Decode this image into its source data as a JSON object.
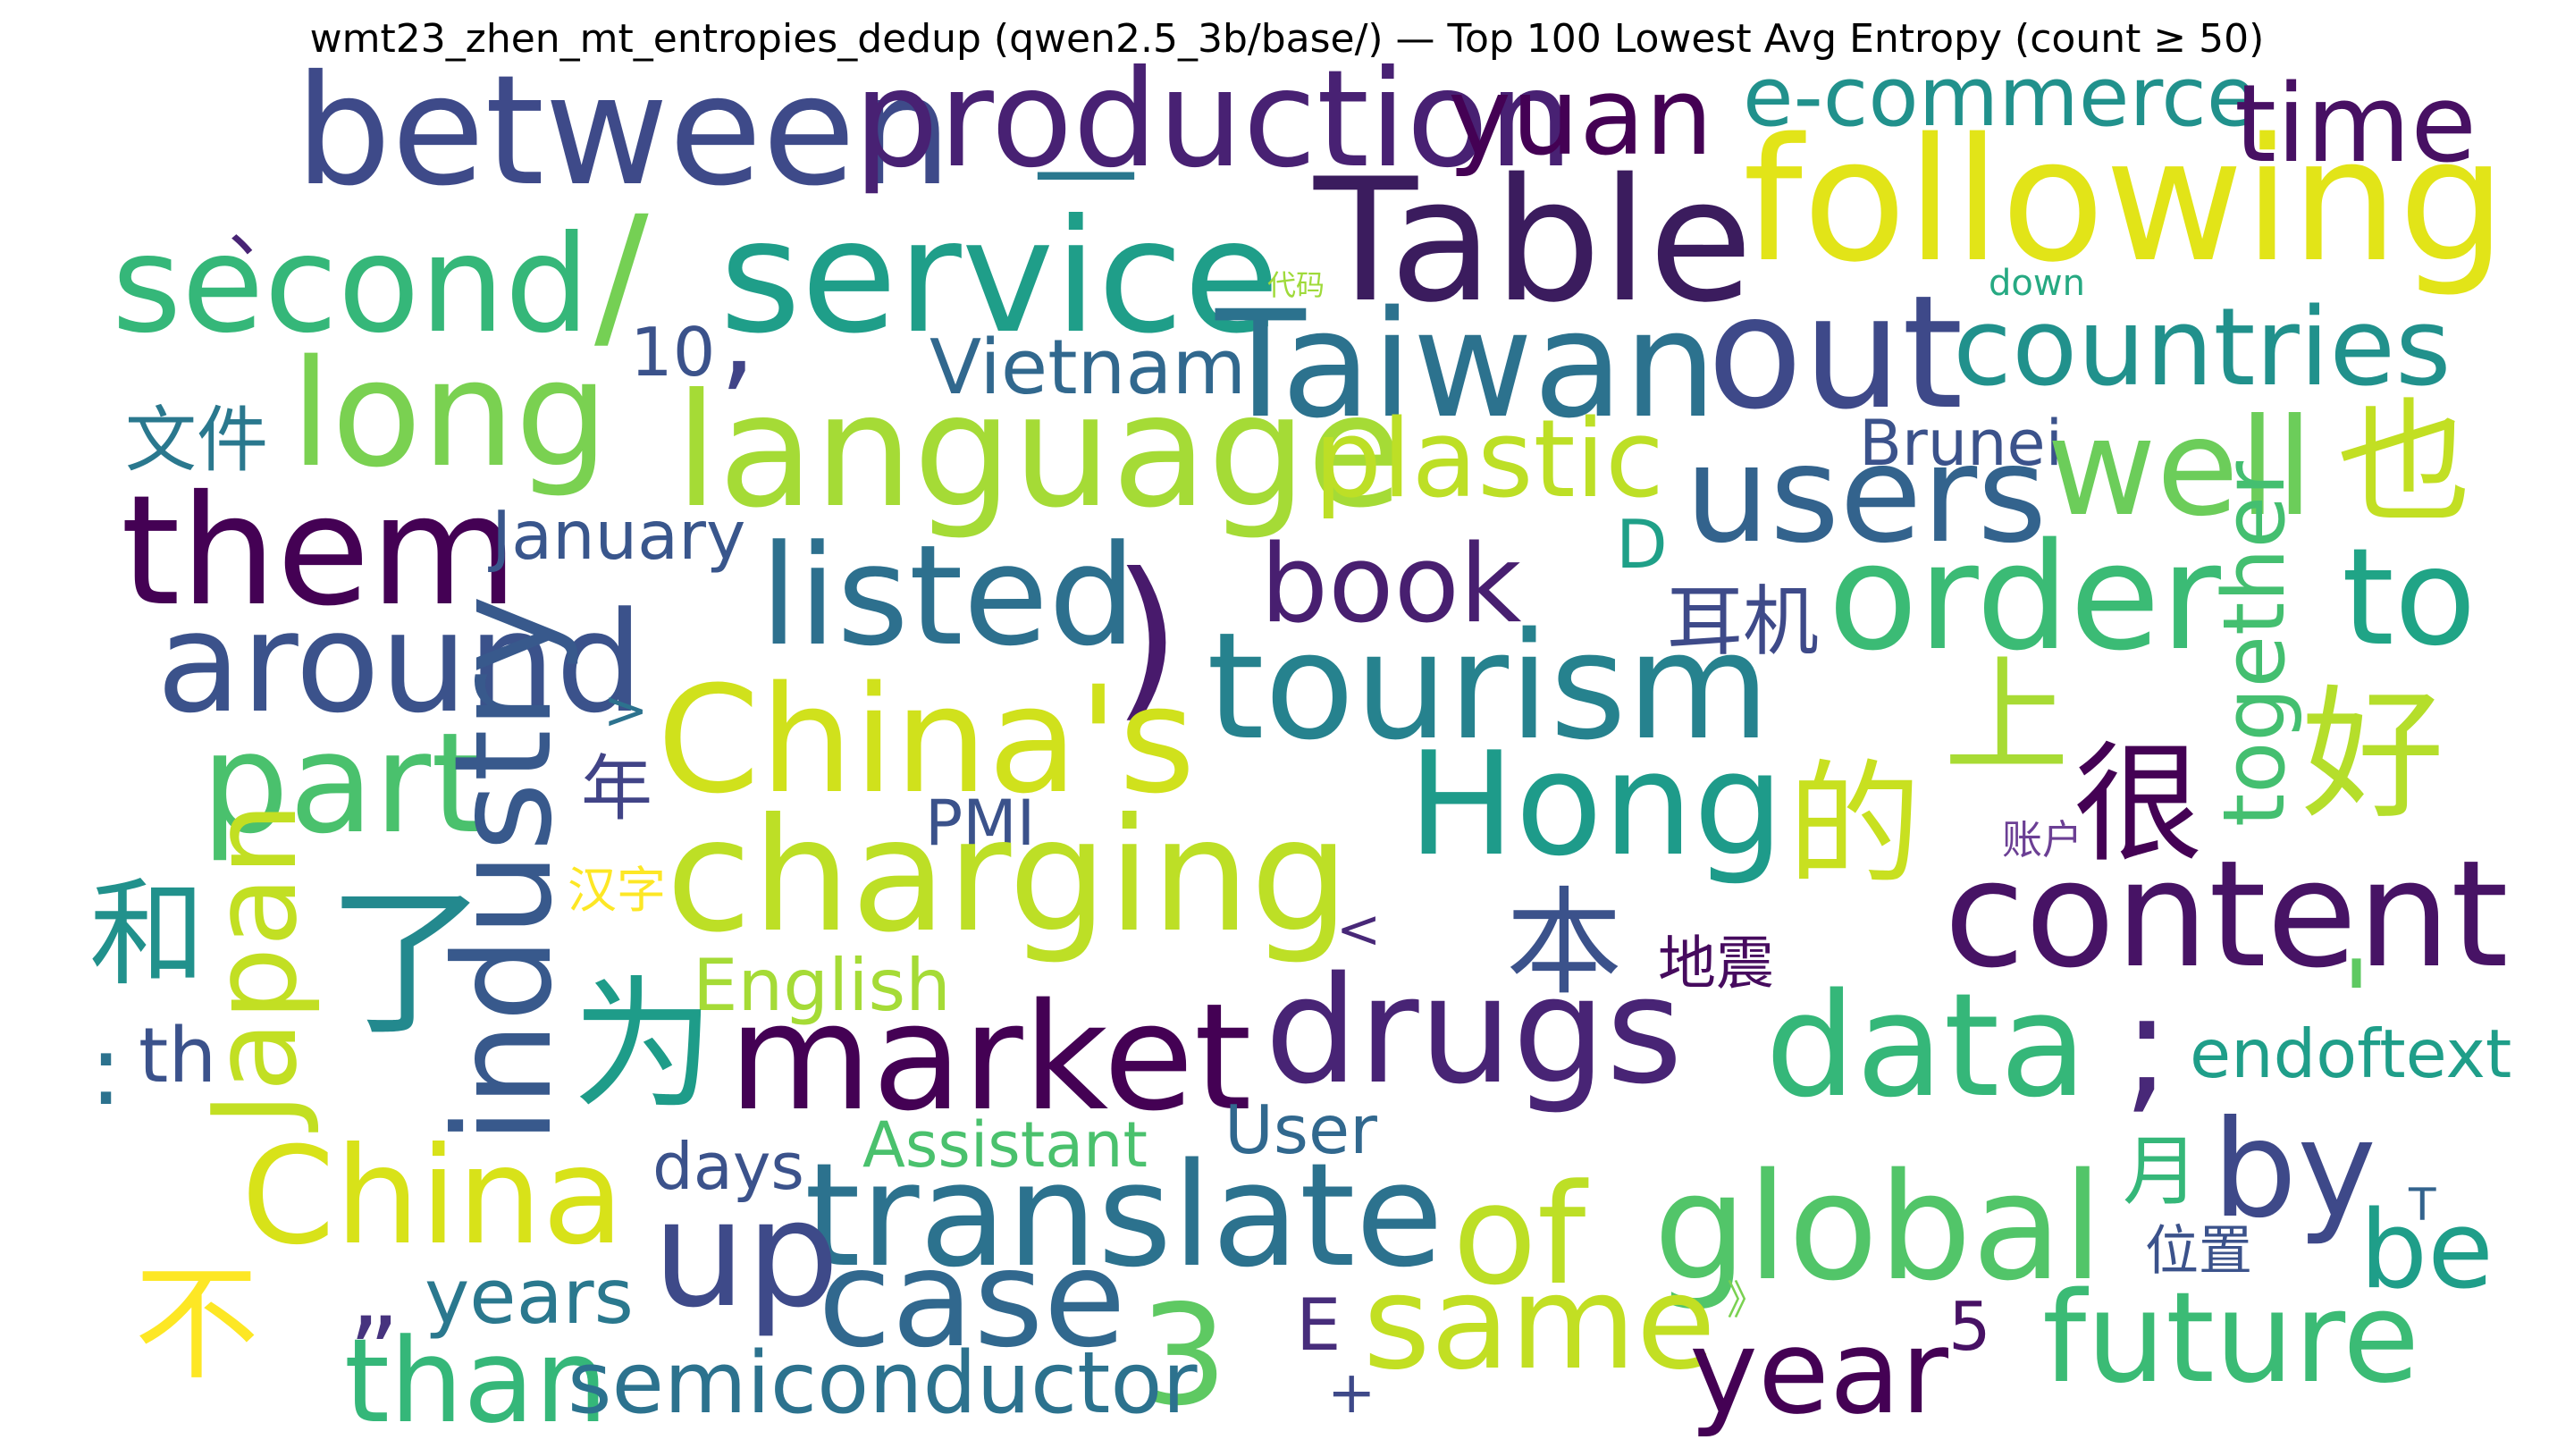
{
  "chart_data": {
    "type": "wordcloud",
    "title": "wmt23_zhen_mt_entropies_dedup (qwen2.5_3b/base/) — Top 100 Lowest Avg Entropy (count ≥ 50)",
    "words": [
      {
        "text": "between",
        "color": "#3e4a89"
      },
      {
        "text": "production",
        "color": "#482173"
      },
      {
        "text": "yuan",
        "color": "#440154"
      },
      {
        "text": "e-commerce",
        "color": "#21918c"
      },
      {
        "text": "time",
        "color": "#471063"
      },
      {
        "text": "following",
        "color": "#e2e418"
      },
      {
        "text": "Table",
        "color": "#3b1c5e"
      },
      {
        "text": "second",
        "color": "#35b779"
      },
      {
        "text": "/",
        "color": "#75d054"
      },
      {
        "text": "service",
        "color": "#1f9e89"
      },
      {
        "text": "、",
        "color": "#482475"
      },
      {
        "text": "—",
        "color": "#2a788e"
      },
      {
        "text": "代码",
        "color": "#9fda3a"
      },
      {
        "text": "down",
        "color": "#26a982"
      },
      {
        "text": "10",
        "color": "#3b528b"
      },
      {
        "text": ",",
        "color": "#414487"
      },
      {
        "text": "Vietnam",
        "color": "#31688e"
      },
      {
        "text": "Taiwan",
        "color": "#2c728e"
      },
      {
        "text": "out",
        "color": "#3e4989"
      },
      {
        "text": "countries",
        "color": "#21918c"
      },
      {
        "text": "文件",
        "color": "#2a788e"
      },
      {
        "text": "long",
        "color": "#7ad151"
      },
      {
        "text": "language",
        "color": "#a5db36"
      },
      {
        "text": "plastic",
        "color": "#bddf26"
      },
      {
        "text": "users",
        "color": "#33638d"
      },
      {
        "text": "Brunei",
        "color": "#3b528b"
      },
      {
        "text": "well",
        "color": "#6ccd5a"
      },
      {
        "text": "也",
        "color": "#c2df23"
      },
      {
        "text": "them",
        "color": "#440154"
      },
      {
        "text": "January",
        "color": "#39568c"
      },
      {
        "text": "D",
        "color": "#1fa088"
      },
      {
        "text": "listed",
        "color": "#2d708e"
      },
      {
        "text": ")",
        "color": "#481a6c"
      },
      {
        "text": "book",
        "color": "#481f70"
      },
      {
        "text": "order",
        "color": "#3bbb75"
      },
      {
        "text": "to",
        "color": "#20a486"
      },
      {
        "text": "耳机",
        "color": "#3e4a89"
      },
      {
        "text": "around",
        "color": "#3b528b"
      },
      {
        "text": "tourism",
        "color": "#26828e"
      },
      {
        "text": "together",
        "color": "#44bf70"
      },
      {
        "text": ">",
        "color": "#2c728e"
      },
      {
        "text": "上",
        "color": "#a8db34"
      },
      {
        "text": "好",
        "color": "#b5de2b"
      },
      {
        "text": "China's",
        "color": "#d0e11c"
      },
      {
        "text": "part",
        "color": "#4ac16d"
      },
      {
        "text": "industry",
        "color": "#38598c"
      },
      {
        "text": "年",
        "color": "#414487"
      },
      {
        "text": "Hong",
        "color": "#1e9b8a"
      },
      {
        "text": "的",
        "color": "#c8e020"
      },
      {
        "text": "很",
        "color": "#440154"
      },
      {
        "text": "PMI",
        "color": "#3b528b"
      },
      {
        "text": "账户",
        "color": "#6b3f94"
      },
      {
        "text": "charging",
        "color": "#bddf26"
      },
      {
        "text": "和",
        "color": "#21918c"
      },
      {
        "text": "了",
        "color": "#23898e"
      },
      {
        "text": "汉字",
        "color": "#fde725"
      },
      {
        "text": "Japan",
        "color": "#c2df23"
      },
      {
        "text": "本",
        "color": "#3b528b"
      },
      {
        "text": "content",
        "color": "#471365"
      },
      {
        "text": "<",
        "color": "#482878"
      },
      {
        "text": "地震",
        "color": "#460b5e"
      },
      {
        "text": "English",
        "color": "#a5db36"
      },
      {
        "text": "为",
        "color": "#1e9c89"
      },
      {
        "text": ":",
        "color": "#2c728e"
      },
      {
        "text": "th",
        "color": "#3b528b"
      },
      {
        "text": "market",
        "color": "#440154"
      },
      {
        "text": "drugs",
        "color": "#482475"
      },
      {
        "text": "data",
        "color": "#35b779"
      },
      {
        "text": ";",
        "color": "#482878"
      },
      {
        "text": "'",
        "color": "#5ec962"
      },
      {
        "text": "endoftext",
        "color": "#1f9e89"
      },
      {
        "text": "Assistant",
        "color": "#4ac16d"
      },
      {
        "text": "User",
        "color": "#31688e"
      },
      {
        "text": "China",
        "color": "#d8e219"
      },
      {
        "text": "days",
        "color": "#3b528b"
      },
      {
        "text": "translate",
        "color": "#2c728e"
      },
      {
        "text": "of",
        "color": "#bddf26"
      },
      {
        "text": "global",
        "color": "#52c569"
      },
      {
        "text": "by",
        "color": "#3e4989"
      },
      {
        "text": "月",
        "color": "#35b779"
      },
      {
        "text": "T",
        "color": "#33638d"
      },
      {
        "text": "be",
        "color": "#1f9e89"
      },
      {
        "text": "up",
        "color": "#3e4a89"
      },
      {
        "text": "case",
        "color": "#31688e"
      },
      {
        "text": "位置",
        "color": "#3b528b"
      },
      {
        "text": "不",
        "color": "#fde725"
      },
      {
        "text": "„",
        "color": "#46337e"
      },
      {
        "text": "years",
        "color": "#2a788e"
      },
      {
        "text": "3",
        "color": "#5ec962"
      },
      {
        "text": "E",
        "color": "#472d7b"
      },
      {
        "text": "same",
        "color": "#c2df23"
      },
      {
        "text": "》",
        "color": "#7ad151"
      },
      {
        "text": "5",
        "color": "#471164"
      },
      {
        "text": "future",
        "color": "#3bbb75"
      },
      {
        "text": "than",
        "color": "#35b779"
      },
      {
        "text": "semiconductor",
        "color": "#2c728e"
      },
      {
        "text": "+",
        "color": "#3e4989"
      },
      {
        "text": "year",
        "color": "#440154"
      }
    ]
  }
}
